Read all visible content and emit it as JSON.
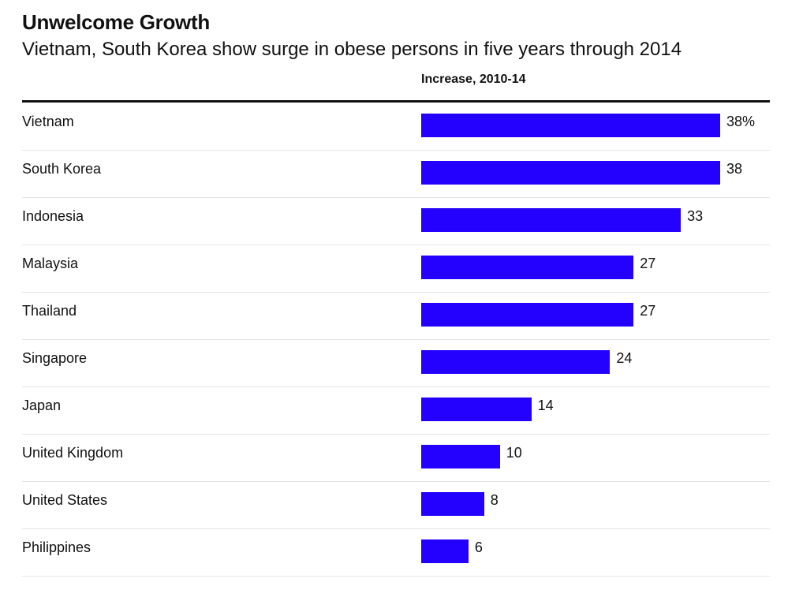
{
  "chart_data": {
    "type": "bar",
    "orientation": "horizontal",
    "title": "Unwelcome Growth",
    "subtitle": "Vietnam, South Korea show surge in obese persons in five years through 2014",
    "column_header": "Increase, 2010-14",
    "categories": [
      "Vietnam",
      "South Korea",
      "Indonesia",
      "Malaysia",
      "Thailand",
      "Singapore",
      "Japan",
      "United Kingdom",
      "United States",
      "Philippines"
    ],
    "values": [
      38,
      38,
      33,
      27,
      27,
      24,
      14,
      10,
      8,
      6
    ],
    "value_labels": [
      "38%",
      "38",
      "33",
      "27",
      "27",
      "24",
      "14",
      "10",
      "8",
      "6"
    ],
    "xlim": [
      0,
      38
    ],
    "unit": "%",
    "bar_color": "#2400ff"
  }
}
